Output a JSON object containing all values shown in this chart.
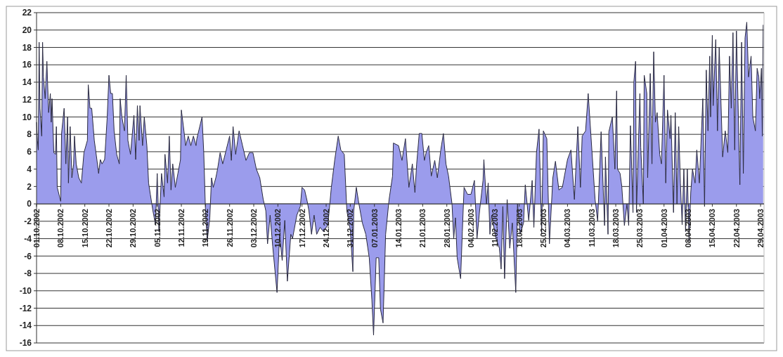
{
  "chart_data": {
    "type": "area",
    "color": "#9b9cec",
    "grid": "y",
    "xlim": [
      "2002-10-01",
      "2003-04-30"
    ],
    "ylim": [
      -16,
      22
    ],
    "yticks": [
      -16,
      -14,
      -12,
      -10,
      -8,
      -6,
      -4,
      -2,
      0,
      2,
      4,
      6,
      8,
      10,
      12,
      14,
      16,
      18,
      20,
      22
    ],
    "xticks": [
      {
        "value": "2002-10-01",
        "label": "01.10.2002"
      },
      {
        "value": "2002-10-08",
        "label": "08.10.2002"
      },
      {
        "value": "2002-10-15",
        "label": "15.10.2002"
      },
      {
        "value": "2002-10-22",
        "label": "22.10.2002"
      },
      {
        "value": "2002-10-29",
        "label": "29.10.2002"
      },
      {
        "value": "2002-11-05",
        "label": "05.11.2002"
      },
      {
        "value": "2002-11-12",
        "label": "12.11.2002"
      },
      {
        "value": "2002-11-19",
        "label": "19.11.2002"
      },
      {
        "value": "2002-11-26",
        "label": "26.11.2002"
      },
      {
        "value": "2002-12-03",
        "label": "03.12.2002"
      },
      {
        "value": "2002-12-10",
        "label": "10.12.2002"
      },
      {
        "value": "2002-12-17",
        "label": "17.12.2002"
      },
      {
        "value": "2002-12-24",
        "label": "24.12.2002"
      },
      {
        "value": "2002-12-31",
        "label": "31.12.2002"
      },
      {
        "value": "2003-01-07",
        "label": "07.01.2003"
      },
      {
        "value": "2003-01-14",
        "label": "14.01.2003"
      },
      {
        "value": "2003-01-21",
        "label": "21.01.2003"
      },
      {
        "value": "2003-01-28",
        "label": "28.01.2003"
      },
      {
        "value": "2003-02-04",
        "label": "04.02.2003"
      },
      {
        "value": "2003-02-11",
        "label": "11.02.2003"
      },
      {
        "value": "2003-02-18",
        "label": "18.02.2003"
      },
      {
        "value": "2003-02-25",
        "label": "25.02.2003"
      },
      {
        "value": "2003-03-04",
        "label": "04.03.2003"
      },
      {
        "value": "2003-03-11",
        "label": "11.03.2003"
      },
      {
        "value": "2003-03-18",
        "label": "18.03.2003"
      },
      {
        "value": "2003-03-25",
        "label": "25.03.2003"
      },
      {
        "value": "2003-04-01",
        "label": "01.04.2003"
      },
      {
        "value": "2003-04-08",
        "label": "08.04.2003"
      },
      {
        "value": "2003-04-15",
        "label": "15.04.2003"
      },
      {
        "value": "2003-04-22",
        "label": "22.04.2003"
      },
      {
        "value": "2003-04-29",
        "label": "29.04.2003"
      }
    ],
    "x": [
      "2002-10-01",
      "2002-10-01T06:00",
      "2002-10-01T12:00",
      "2002-10-01T18:00",
      "2002-10-02",
      "2002-10-02T12:00",
      "2002-10-02T18:00",
      "2002-10-03",
      "2002-10-03T12:00",
      "2002-10-04",
      "2002-10-04T12:00",
      "2002-10-05",
      "2002-10-05T06:00",
      "2002-10-05T12:00",
      "2002-10-06",
      "2002-10-06T12:00",
      "2002-10-06T18:00",
      "2002-10-07",
      "2002-10-08",
      "2002-10-08T06:00",
      "2002-10-09",
      "2002-10-09T12:00",
      "2002-10-10",
      "2002-10-10T06:00",
      "2002-10-10T18:00",
      "2002-10-11T06:00",
      "2002-10-11T18:00",
      "2002-10-12",
      "2002-10-12T12:00",
      "2002-10-13T06:00",
      "2002-10-14",
      "2002-10-14T18:00",
      "2002-10-15T18:00",
      "2002-10-16",
      "2002-10-16T12:00",
      "2002-10-17",
      "2002-10-17T18:00",
      "2002-10-18T12:00",
      "2002-10-19",
      "2002-10-19T12:00",
      "2002-10-20",
      "2002-10-20T18:00",
      "2002-10-21T12:00",
      "2002-10-22",
      "2002-10-22T12:00",
      "2002-10-23",
      "2002-10-23T12:00",
      "2002-10-24T06:00",
      "2002-10-25",
      "2002-10-25T06:00",
      "2002-10-25T18:00",
      "2002-10-26T12:00",
      "2002-10-27",
      "2002-10-27T12:00",
      "2002-10-28T06:00",
      "2002-10-29T06:00",
      "2002-10-29T18:00",
      "2002-10-30T06:00",
      "2002-10-30T18:00",
      "2002-10-31",
      "2002-10-31T18:00",
      "2002-11-01T06:00",
      "2002-11-02",
      "2002-11-02T12:00",
      "2002-11-03",
      "2002-11-03T18:00",
      "2002-11-04T12:00",
      "2002-11-05",
      "2002-11-05T12:00",
      "2002-11-06T06:00",
      "2002-11-07",
      "2002-11-07T06:00",
      "2002-11-08",
      "2002-11-08T12:00",
      "2002-11-09",
      "2002-11-09T12:00",
      "2002-11-10T06:00",
      "2002-11-11",
      "2002-11-11T18:00",
      "2002-11-12",
      "2002-11-12T18:00",
      "2002-11-13T06:00",
      "2002-11-14",
      "2002-11-14T18:00",
      "2002-11-15T12:00",
      "2002-11-16T06:00",
      "2002-11-16T12:00",
      "2002-11-18",
      "2002-11-18T12:00",
      "2002-11-19",
      "2002-11-19T12:00",
      "2002-11-20T06:00",
      "2002-11-20T18:00",
      "2002-11-21T06:00",
      "2002-11-22",
      "2002-11-22T12:00",
      "2002-11-23T06:00",
      "2002-11-24",
      "2002-11-25",
      "2002-11-26",
      "2002-11-26T12:00",
      "2002-11-27",
      "2002-11-27T18:00",
      "2002-11-28T18:00",
      "2002-11-29T18:00",
      "2002-11-30T18:00",
      "2002-12-01T18:00",
      "2002-12-02T18:00",
      "2002-12-03T18:00",
      "2002-12-04T18:00",
      "2002-12-05T18:00",
      "2002-12-06T12:00",
      "2002-12-07",
      "2002-12-07T18:00",
      "2002-12-08T12:00",
      "2002-12-09T18:00",
      "2002-12-10T12:00",
      "2002-12-11T06:00",
      "2002-12-12",
      "2002-12-12T18:00",
      "2002-12-13T18:00",
      "2002-12-14T06:00",
      "2002-12-15T12:00",
      "2002-12-16T12:00",
      "2002-12-17",
      "2002-12-17T18:00",
      "2002-12-18T12:00",
      "2002-12-19",
      "2002-12-19T18:00",
      "2002-12-20T12:00",
      "2002-12-21T06:00",
      "2002-12-22T06:00",
      "2002-12-23T06:00",
      "2002-12-24T12:00",
      "2002-12-25T12:00",
      "2002-12-26T12:00",
      "2002-12-27T12:00",
      "2002-12-28T06:00",
      "2002-12-29T06:00",
      "2002-12-30",
      "2002-12-31",
      "2002-12-31T18:00",
      "2003-01-01",
      "2003-01-01T18:00",
      "2003-01-02T12:00",
      "2003-01-03T12:00",
      "2003-01-04T12:00",
      "2003-01-05T12:00",
      "2003-01-06T06:00",
      "2003-01-06T18:00",
      "2003-01-07T12:00",
      "2003-01-08T06:00",
      "2003-01-08T18:00",
      "2003-01-09T12:00",
      "2003-01-10T06:00",
      "2003-01-11T06:00",
      "2003-01-12T06:00",
      "2003-01-12T12:00",
      "2003-01-14",
      "2003-01-15",
      "2003-01-16",
      "2003-01-17",
      "2003-01-18",
      "2003-01-18T18:00",
      "2003-01-19T06:00",
      "2003-01-20",
      "2003-01-20T18:00",
      "2003-01-21T12:00",
      "2003-01-22",
      "2003-01-22T18:00",
      "2003-01-23T12:00",
      "2003-01-24T12:00",
      "2003-01-25T06:00",
      "2003-01-26T06:00",
      "2003-01-27",
      "2003-01-27T18:00",
      "2003-01-28T12:00",
      "2003-01-29T12:00",
      "2003-01-30",
      "2003-01-30T12:00",
      "2003-01-31",
      "2003-02-01",
      "2003-02-01T12:00",
      "2003-02-02",
      "2003-02-03",
      "2003-02-04",
      "2003-02-05",
      "2003-02-05T18:00",
      "2003-02-06T12:00",
      "2003-02-07T12:00",
      "2003-02-07T18:00",
      "2003-02-08T12:00",
      "2003-02-09",
      "2003-02-09T12:00",
      "2003-02-10",
      "2003-02-11T06:00",
      "2003-02-12T06:00",
      "2003-02-12T18:00",
      "2003-02-13T06:00",
      "2003-02-13T18:00",
      "2003-02-14T12:00",
      "2003-02-15T06:00",
      "2003-02-16",
      "2003-02-17",
      "2003-02-17T12:00",
      "2003-02-18T06:00",
      "2003-02-19T06:00",
      "2003-02-19T18:00",
      "2003-02-20T18:00",
      "2003-02-21T18:00",
      "2003-02-22T06:00",
      "2003-02-23",
      "2003-02-23T18:00",
      "2003-02-24T12:00",
      "2003-02-25",
      "2003-02-26",
      "2003-02-26T18:00",
      "2003-02-27T18:00",
      "2003-02-28T12:00",
      "2003-03-01T12:00",
      "2003-03-02T12:00",
      "2003-03-04",
      "2003-03-05",
      "2003-03-06",
      "2003-03-07",
      "2003-03-07T18:00",
      "2003-03-08T06:00",
      "2003-03-09T06:00",
      "2003-03-10",
      "2003-03-12",
      "2003-03-12T18:00",
      "2003-03-13T18:00",
      "2003-03-14T18:00",
      "2003-03-15",
      "2003-03-15T18:00",
      "2003-03-16",
      "2003-03-17",
      "2003-03-17T18:00",
      "2003-03-18T06:00",
      "2003-03-18T12:00",
      "2003-03-19T06:00",
      "2003-03-19T18:00",
      "2003-03-20T12:00",
      "2003-03-21T06:00",
      "2003-03-21T18:00",
      "2003-03-22T06:00",
      "2003-03-23",
      "2003-03-23T06:00",
      "2003-03-23T18:00",
      "2003-03-24",
      "2003-03-25",
      "2003-03-25T06:00",
      "2003-03-26",
      "2003-03-26T06:00",
      "2003-03-27",
      "2003-03-27T06:00",
      "2003-03-28",
      "2003-03-28T12:00",
      "2003-03-29",
      "2003-03-29T12:00",
      "2003-03-30",
      "2003-03-30T18:00",
      "2003-03-31T06:00",
      "2003-04-01",
      "2003-04-01T12:00",
      "2003-04-02",
      "2003-04-02T18:00",
      "2003-04-03",
      "2003-04-03T18:00",
      "2003-04-04T06:00",
      "2003-04-04T18:00",
      "2003-04-05T06:00",
      "2003-04-05T18:00",
      "2003-04-06T06:00",
      "2003-04-06T18:00",
      "2003-04-07T06:00",
      "2003-04-07T18:00",
      "2003-04-08T06:00",
      "2003-04-08T18:00",
      "2003-04-09T06:00",
      "2003-04-10",
      "2003-04-10T12:00",
      "2003-04-11T06:00",
      "2003-04-12T06:00",
      "2003-04-12T18:00",
      "2003-04-13T06:00",
      "2003-04-13T18:00",
      "2003-04-14T06:00",
      "2003-04-14T12:00",
      "2003-04-15",
      "2003-04-15T06:00",
      "2003-04-16",
      "2003-04-16T12:00",
      "2003-04-17",
      "2003-04-17T12:00",
      "2003-04-18",
      "2003-04-18T18:00",
      "2003-04-19T12:00",
      "2003-04-20",
      "2003-04-20T12:00",
      "2003-04-21",
      "2003-04-21T12:00",
      "2003-04-22",
      "2003-04-22T12:00",
      "2003-04-23",
      "2003-04-23T12:00",
      "2003-04-24",
      "2003-04-24T12:00",
      "2003-04-25",
      "2003-04-25T12:00",
      "2003-04-26T06:00",
      "2003-04-26T18:00",
      "2003-04-27T12:00",
      "2003-04-28",
      "2003-04-28T12:00",
      "2003-04-28T18:00",
      "2003-04-29T06:00",
      "2003-04-29T12:00",
      "2003-04-29T18:00"
    ],
    "values": [
      9.4,
      7.3,
      6.2,
      18.6,
      11,
      7.8,
      18.6,
      14.6,
      12.1,
      16.4,
      10.5,
      12.7,
      9.4,
      12.1,
      5.9,
      5.7,
      8.9,
      1.9,
      0.3,
      8.1,
      11,
      4.6,
      10,
      2.4,
      8.9,
      3,
      4.6,
      7.8,
      4.6,
      3,
      2.4,
      5.9,
      7.3,
      13.7,
      11,
      11,
      7.3,
      5.1,
      3.5,
      5.1,
      4.6,
      5.1,
      10,
      14.8,
      12.7,
      12.7,
      8.4,
      5.7,
      4.6,
      12.1,
      10,
      8.4,
      14.8,
      7.3,
      5.7,
      10.2,
      5.1,
      11.3,
      7.3,
      11.3,
      6.7,
      10,
      6.7,
      2.4,
      1.1,
      -0.8,
      -2.4,
      3.5,
      -3.2,
      3.5,
      0.8,
      5.7,
      2.4,
      7.8,
      1.6,
      4.6,
      1.9,
      3.5,
      5.1,
      10.8,
      8.4,
      6.7,
      7.8,
      6.7,
      7.8,
      6.7,
      7.5,
      10,
      5.9,
      -0.8,
      -4.3,
      -1.6,
      3,
      1.9,
      3,
      4,
      5.9,
      4.6,
      6.2,
      7.8,
      5,
      8.9,
      5.7,
      8.4,
      6.7,
      5,
      5.9,
      5.9,
      4,
      3,
      0.5,
      -0.8,
      -4.6,
      -1.3,
      -4.9,
      -10.2,
      -3.5,
      -6.5,
      -1.9,
      -8.9,
      -3.5,
      -4,
      -1.3,
      -0.3,
      1.9,
      1.6,
      0.3,
      -0.8,
      -3.5,
      -1.3,
      -3.5,
      -2.7,
      -3.2,
      -2.4,
      1.9,
      5.1,
      7.8,
      6.2,
      5.7,
      -0.8,
      -3,
      -7.8,
      -0.8,
      1.9,
      0,
      -2.2,
      -3.5,
      -6.2,
      -11,
      -15.1,
      -6.2,
      -6.2,
      -12.1,
      -13.7,
      -3.5,
      0.5,
      3.2,
      7,
      6.7,
      5,
      7.5,
      1.9,
      4.6,
      1.3,
      4.6,
      8.1,
      8.1,
      5,
      5.9,
      6.7,
      3.2,
      5,
      3,
      6.2,
      8.1,
      4.6,
      3.2,
      0,
      -4,
      -1.6,
      -6.2,
      -8.6,
      -3.2,
      1.9,
      1.1,
      1.1,
      2.7,
      -4,
      -0.8,
      2.7,
      5.1,
      0,
      2.4,
      -3.5,
      -1.3,
      -4,
      -5.1,
      -7.5,
      -0.3,
      -8.6,
      0.5,
      -5.1,
      -2.2,
      -10.2,
      0,
      -3.5,
      -2.2,
      2.2,
      -1.9,
      2.7,
      -2.7,
      5.9,
      8.6,
      -3.5,
      8.4,
      7.5,
      -4.6,
      3,
      4.9,
      1.6,
      1.9,
      5.1,
      6.2,
      0.5,
      8.9,
      1.9,
      7.8,
      8.4,
      12.7,
      0.5,
      -2,
      8.3,
      -2.5,
      5.4,
      -3.5,
      8.3,
      10,
      4,
      13,
      4,
      3.5,
      2,
      -2.5,
      0,
      -2.5,
      9,
      -1,
      14,
      16.4,
      -1,
      12.7,
      6.5,
      0,
      14.8,
      12.7,
      3,
      15,
      4.6,
      17.5,
      9.4,
      10.5,
      5.7,
      4.6,
      14.8,
      2.4,
      10.8,
      7.5,
      10.2,
      -1,
      10.5,
      0,
      8.9,
      2.4,
      -2.4,
      4,
      -3.2,
      4,
      -4.3,
      1.3,
      4,
      2.4,
      6.2,
      2.4,
      12.1,
      -0.3,
      15.4,
      8.4,
      17,
      10,
      19.4,
      11.3,
      18.9,
      8.4,
      18,
      11.9,
      5.4,
      8.4,
      5.9,
      17,
      11,
      19.7,
      6.2,
      19.9,
      11,
      2.2,
      18.6,
      3.5,
      19.1,
      20.9,
      14.6,
      17,
      10,
      8.4,
      15.6,
      14.6,
      12.1,
      15.6,
      7.8,
      20.6
    ]
  }
}
